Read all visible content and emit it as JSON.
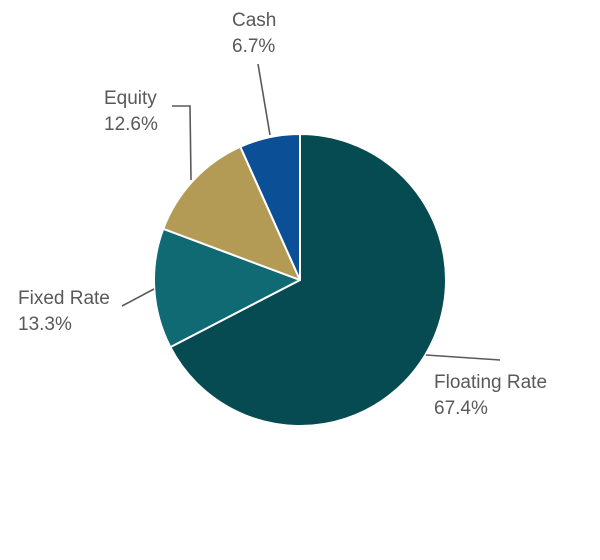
{
  "chart_data": {
    "type": "pie",
    "title": "",
    "slices": [
      {
        "label": "Floating Rate",
        "value": 67.4,
        "value_text": "67.4%",
        "color": "#064B52"
      },
      {
        "label": "Fixed Rate",
        "value": 13.3,
        "value_text": "13.3%",
        "color": "#0F6A73"
      },
      {
        "label": "Equity",
        "value": 12.6,
        "value_text": "12.6%",
        "color": "#B39A55"
      },
      {
        "label": "Cash",
        "value": 6.7,
        "value_text": "6.7%",
        "color": "#0B4F96"
      }
    ],
    "start_angle": "12 o'clock",
    "direction": "clockwise",
    "slice_border_color": "#FFFFFF",
    "leader_line_color": "#595959",
    "legend": "none (data labels with leader lines)"
  }
}
